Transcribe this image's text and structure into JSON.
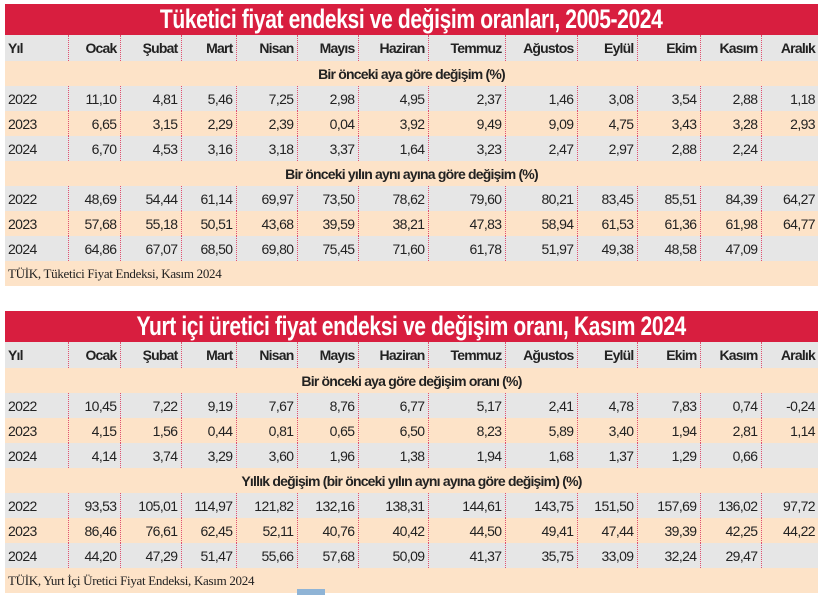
{
  "columns": [
    "Yıl",
    "Ocak",
    "Şubat",
    "Mart",
    "Nisan",
    "Mayıs",
    "Haziran",
    "Temmuz",
    "Ağustos",
    "Eylül",
    "Ekim",
    "Kasım",
    "Aralık"
  ],
  "tables": [
    {
      "title": "Tüketici fiyat endeksi ve değişim oranları, 2005-2024",
      "sections": [
        {
          "label": "Bir önceki aya göre değişim (%)",
          "rows": [
            [
              "2022",
              "11,10",
              "4,81",
              "5,46",
              "7,25",
              "2,98",
              "4,95",
              "2,37",
              "1,46",
              "3,08",
              "3,54",
              "2,88",
              "1,18"
            ],
            [
              "2023",
              "6,65",
              "3,15",
              "2,29",
              "2,39",
              "0,04",
              "3,92",
              "9,49",
              "9,09",
              "4,75",
              "3,43",
              "3,28",
              "2,93"
            ],
            [
              "2024",
              "6,70",
              "4,53",
              "3,16",
              "3,18",
              "3,37",
              "1,64",
              "3,23",
              "2,47",
              "2,97",
              "2,88",
              "2,24",
              ""
            ]
          ]
        },
        {
          "label": "Bir önceki yılın aynı ayına göre değişim (%)",
          "rows": [
            [
              "2022",
              "48,69",
              "54,44",
              "61,14",
              "69,97",
              "73,50",
              "78,62",
              "79,60",
              "80,21",
              "83,45",
              "85,51",
              "84,39",
              "64,27"
            ],
            [
              "2023",
              "57,68",
              "55,18",
              "50,51",
              "43,68",
              "39,59",
              "38,21",
              "47,83",
              "58,94",
              "61,53",
              "61,36",
              "61,98",
              "64,77"
            ],
            [
              "2024",
              "64,86",
              "67,07",
              "68,50",
              "69,80",
              "75,45",
              "71,60",
              "61,78",
              "51,97",
              "49,38",
              "48,58",
              "47,09",
              ""
            ]
          ]
        }
      ],
      "source": "TÜİK, Tüketici Fiyat Endeksi, Kasım 2024"
    },
    {
      "title": "Yurt içi üretici fiyat endeksi ve değişim oranı, Kasım 2024",
      "sections": [
        {
          "label": "Bir önceki aya göre değişim oranı (%)",
          "rows": [
            [
              "2022",
              "10,45",
              "7,22",
              "9,19",
              "7,67",
              "8,76",
              "6,77",
              "5,17",
              "2,41",
              "4,78",
              "7,83",
              "0,74",
              "-0,24"
            ],
            [
              "2023",
              "4,15",
              "1,56",
              "0,44",
              "0,81",
              "0,65",
              "6,50",
              "8,23",
              "5,89",
              "3,40",
              "1,94",
              "2,81",
              "1,14"
            ],
            [
              "2024",
              "4,14",
              "3,74",
              "3,29",
              "3,60",
              "1,96",
              "1,38",
              "1,94",
              "1,68",
              "1,37",
              "1,29",
              "0,66",
              ""
            ]
          ]
        },
        {
          "label": "Yıllık değişim (bir önceki yılın aynı ayına göre değişim) (%)",
          "rows": [
            [
              "2022",
              "93,53",
              "105,01",
              "114,97",
              "121,82",
              "132,16",
              "138,31",
              "144,61",
              "143,75",
              "151,50",
              "157,69",
              "136,02",
              "97,72"
            ],
            [
              "2023",
              "86,46",
              "76,61",
              "62,45",
              "52,11",
              "40,76",
              "40,42",
              "44,50",
              "49,41",
              "47,44",
              "39,39",
              "42,25",
              "44,22"
            ],
            [
              "2024",
              "44,20",
              "47,29",
              "51,47",
              "55,66",
              "57,68",
              "50,09",
              "41,37",
              "35,75",
              "33,09",
              "32,24",
              "29,47",
              ""
            ]
          ]
        }
      ],
      "source": "TÜİK, Yurt İçi Üretici Fiyat Endeksi, Kasım 2024"
    }
  ],
  "colors": {
    "title_bg": "#d81e3f",
    "row_gray": "#e6e6e6",
    "row_peach": "#fde3c8"
  }
}
